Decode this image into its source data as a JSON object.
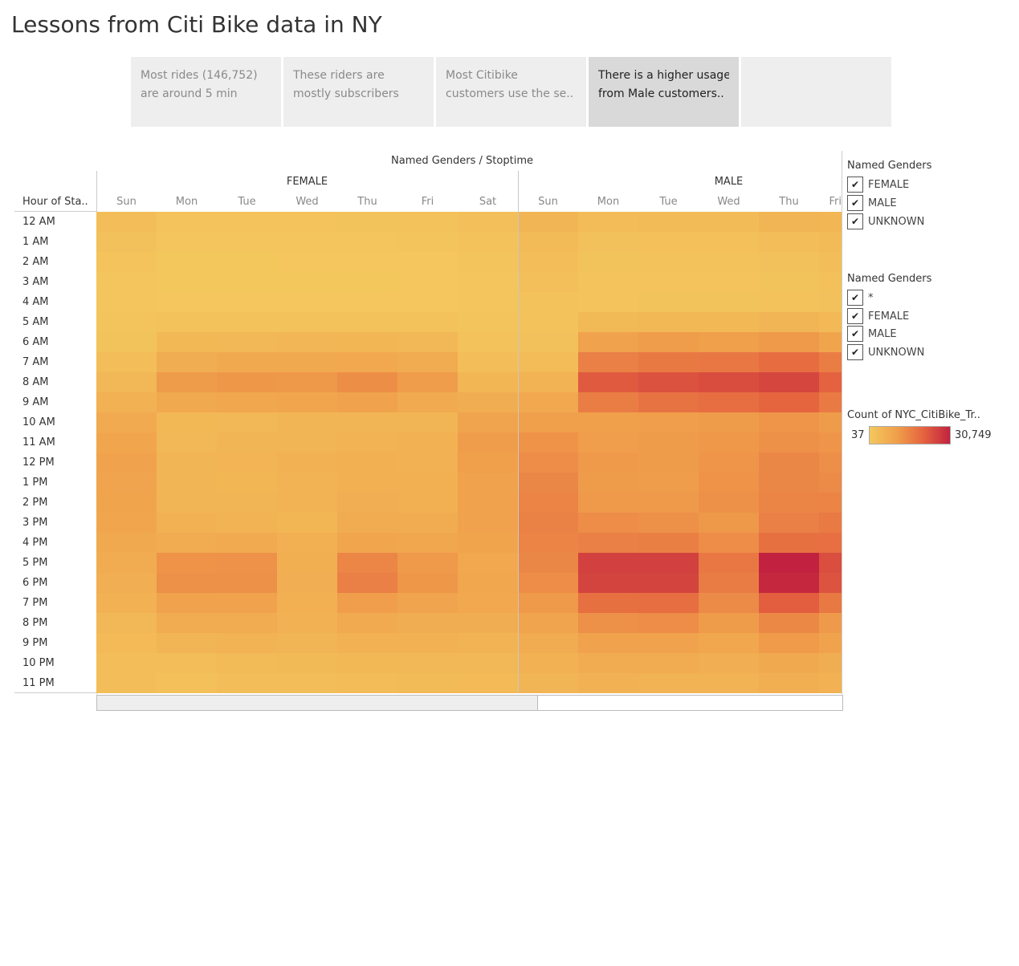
{
  "page": {
    "title": "Lessons from Citi Bike data in NY"
  },
  "story_points": [
    {
      "line1": "Most rides (146,752)",
      "line2": "are around 5 min",
      "active": false
    },
    {
      "line1": "These riders are",
      "line2": "mostly subscribers",
      "active": false
    },
    {
      "line1": "Most Citibike",
      "line2": "customers use the se..",
      "active": false
    },
    {
      "line1": "There is a higher usage",
      "line2": "from Male customers..",
      "active": true
    },
    {
      "line1": "",
      "line2": "",
      "active": false
    }
  ],
  "chart_data": {
    "type": "heatmap",
    "title": "Named Genders / Stoptime",
    "row_header": "Hour of Sta..",
    "genders": [
      "FEMALE",
      "MALE"
    ],
    "day_labels": [
      "Sun",
      "Mon",
      "Tue",
      "Wed",
      "Thu",
      "Fri",
      "Sat",
      "Sun",
      "Mon",
      "Tue",
      "Wed",
      "Thu",
      "Fri"
    ],
    "hours": [
      "12 AM",
      "1 AM",
      "2 AM",
      "3 AM",
      "4 AM",
      "5 AM",
      "6 AM",
      "7 AM",
      "8 AM",
      "9 AM",
      "10 AM",
      "11 AM",
      "12 PM",
      "1 PM",
      "2 PM",
      "3 PM",
      "4 PM",
      "5 PM",
      "6 PM",
      "7 PM",
      "8 PM",
      "9 PM",
      "10 PM",
      "11 PM"
    ],
    "color_min": 37,
    "color_max": 30749,
    "colors": [
      "#f4c85e",
      "#f0a04b",
      "#e5643f",
      "#c2223f"
    ],
    "values": [
      [
        2500,
        1200,
        1200,
        1300,
        1400,
        1500,
        2300,
        4800,
        3200,
        3300,
        3400,
        4900,
        4700
      ],
      [
        1800,
        700,
        700,
        800,
        900,
        1000,
        1700,
        3400,
        1900,
        2000,
        2100,
        2500,
        3300
      ],
      [
        1200,
        400,
        400,
        500,
        500,
        600,
        1100,
        2900,
        1400,
        1500,
        1500,
        1900,
        2600
      ],
      [
        900,
        400,
        400,
        400,
        400,
        500,
        800,
        2400,
        1200,
        1300,
        1300,
        1400,
        2000
      ],
      [
        700,
        500,
        500,
        500,
        500,
        600,
        700,
        1700,
        1300,
        1400,
        1400,
        1500,
        1900
      ],
      [
        1000,
        1500,
        1500,
        1600,
        1600,
        1500,
        1000,
        1500,
        4000,
        4200,
        4100,
        4800,
        3800
      ],
      [
        1400,
        4200,
        4500,
        4600,
        4700,
        4500,
        1600,
        1800,
        9800,
        10800,
        10500,
        11300,
        9000
      ],
      [
        2500,
        7000,
        8000,
        7900,
        8200,
        7500,
        2700,
        3000,
        15800,
        17000,
        17200,
        19000,
        16200
      ],
      [
        4500,
        11000,
        11800,
        11700,
        13300,
        10800,
        4700,
        5500,
        22000,
        23300,
        24100,
        25100,
        20800
      ],
      [
        6000,
        8000,
        8500,
        8800,
        9500,
        7800,
        7000,
        8200,
        16200,
        18000,
        18800,
        20300,
        16700
      ],
      [
        7600,
        4200,
        4500,
        4800,
        5000,
        5000,
        9200,
        10500,
        10300,
        10600,
        11000,
        12200,
        11000
      ],
      [
        8700,
        4500,
        4800,
        5000,
        5500,
        5600,
        10800,
        12500,
        10600,
        11000,
        11600,
        13000,
        12100
      ],
      [
        9500,
        5000,
        5200,
        5800,
        6100,
        5800,
        10500,
        13500,
        11500,
        11000,
        12200,
        14500,
        13200
      ],
      [
        9200,
        4800,
        4700,
        5300,
        6200,
        6100,
        9800,
        14500,
        11000,
        10800,
        12500,
        14500,
        14100
      ],
      [
        9100,
        5000,
        4800,
        5500,
        6600,
        6300,
        9800,
        15000,
        11500,
        11500,
        12900,
        14900,
        15100
      ],
      [
        8800,
        5900,
        5500,
        4700,
        7100,
        7100,
        9800,
        15500,
        13500,
        13000,
        11700,
        15700,
        16800
      ],
      [
        8000,
        7500,
        7700,
        6100,
        8800,
        8500,
        9100,
        15000,
        15700,
        15900,
        13500,
        18400,
        18600
      ],
      [
        7300,
        12500,
        12700,
        6500,
        14700,
        11500,
        8300,
        14600,
        26000,
        26000,
        17200,
        30700,
        23900
      ],
      [
        6600,
        13000,
        12900,
        6700,
        15700,
        11800,
        8400,
        13500,
        25500,
        25500,
        16500,
        30000,
        23000
      ],
      [
        5800,
        9800,
        9500,
        6300,
        10700,
        9200,
        8300,
        11500,
        18500,
        18800,
        14000,
        21500,
        17000
      ],
      [
        4500,
        7100,
        7300,
        5600,
        7700,
        6900,
        7000,
        9200,
        13000,
        13500,
        11000,
        14400,
        11300
      ],
      [
        3600,
        4800,
        5300,
        4900,
        5700,
        5600,
        5500,
        7500,
        9500,
        9500,
        8400,
        11200,
        9600
      ],
      [
        2900,
        2900,
        3500,
        4000,
        4200,
        4500,
        4300,
        6000,
        7100,
        7200,
        6600,
        8000,
        7000
      ],
      [
        2500,
        2000,
        2500,
        2900,
        3100,
        3500,
        3600,
        4900,
        5600,
        5400,
        5500,
        6400,
        6000
      ]
    ]
  },
  "legend_genders_1": {
    "title": "Named Genders",
    "items": [
      "FEMALE",
      "MALE",
      "UNKNOWN"
    ]
  },
  "legend_genders_2": {
    "title": "Named Genders",
    "items": [
      "*",
      "FEMALE",
      "MALE",
      "UNKNOWN"
    ]
  },
  "color_legend": {
    "title": "Count of NYC_CitiBike_Tr..",
    "min_label": "37",
    "max_label": "30,749"
  },
  "icons": {
    "checkbox": "check-icon"
  }
}
